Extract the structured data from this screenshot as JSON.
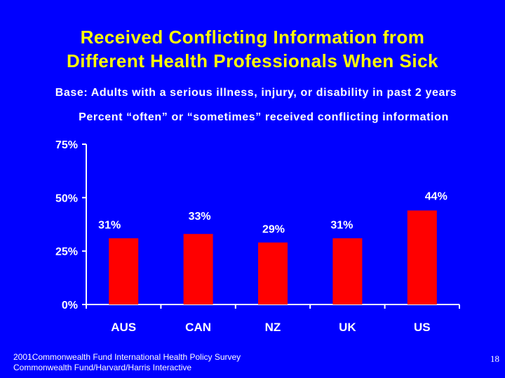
{
  "slide": {
    "title_line1": "Received Conflicting Information from",
    "title_line2": "Different Health Professionals When Sick",
    "base": "Base: Adults with a serious illness, injury, or disability in past 2 years",
    "subtitle": "Percent “often” or “sometimes” received conflicting information",
    "footer_line1": "2001Commonwealth Fund International Health Policy Survey",
    "footer_line2": "Commonwealth Fund/Harvard/Harris Interactive",
    "page_number": "18"
  },
  "colors": {
    "background": "#0000FF",
    "title": "#FFFF00",
    "bar": "#FF0000",
    "text": "#FFFFFF"
  },
  "chart_data": {
    "type": "bar",
    "title": "Percent “often” or “sometimes” received conflicting information",
    "categories": [
      "AUS",
      "CAN",
      "NZ",
      "UK",
      "US"
    ],
    "values": [
      31,
      33,
      29,
      31,
      44
    ],
    "data_labels": [
      "31%",
      "33%",
      "29%",
      "31%",
      "44%"
    ],
    "ylim": [
      0,
      75
    ],
    "yticks": [
      0,
      25,
      50,
      75
    ],
    "ytick_labels": [
      "0%",
      "25%",
      "50%",
      "75%"
    ],
    "xlabel": "",
    "ylabel": "",
    "grid": false,
    "legend": "none"
  }
}
